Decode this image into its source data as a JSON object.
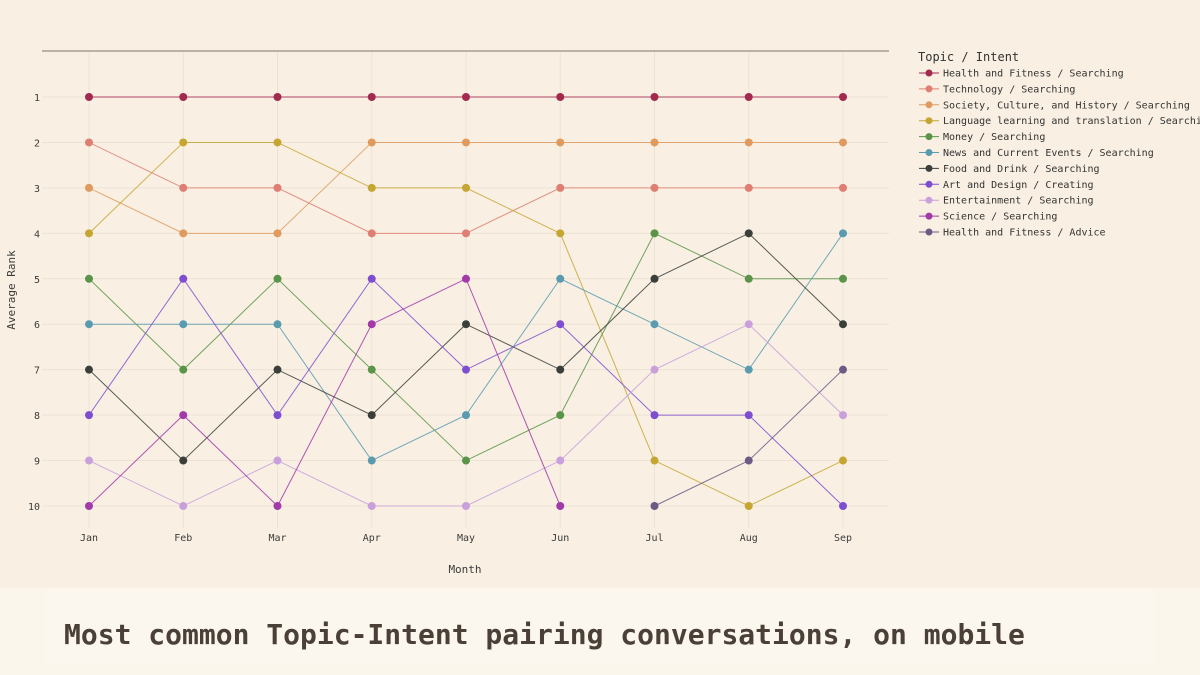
{
  "chart_data": {
    "type": "line",
    "title": "",
    "xlabel": "Month",
    "ylabel": "Average Rank",
    "x": [
      "Jan",
      "Feb",
      "Mar",
      "Apr",
      "May",
      "Jun",
      "Jul",
      "Aug",
      "Sep"
    ],
    "y_ticks": [
      1,
      2,
      3,
      4,
      5,
      6,
      7,
      8,
      9,
      10
    ],
    "y_reversed": true,
    "ylim": [
      0,
      10.3
    ],
    "grid": true,
    "legend": {
      "title": "Topic / Intent",
      "placement": "right"
    },
    "series": [
      {
        "name": "Health and Fitness / Searching",
        "color": "#a3294f",
        "values": [
          1,
          1,
          1,
          1,
          1,
          1,
          1,
          1,
          1
        ]
      },
      {
        "name": "Technology / Searching",
        "color": "#df7e72",
        "values": [
          2,
          3,
          3,
          4,
          4,
          3,
          3,
          3,
          3
        ]
      },
      {
        "name": "Society, Culture, and History / Searching",
        "color": "#e09a5e",
        "values": [
          3,
          4,
          4,
          2,
          2,
          2,
          2,
          2,
          2
        ]
      },
      {
        "name": "Language learning and translation / Searching",
        "color": "#c5a632",
        "values": [
          4,
          2,
          2,
          3,
          3,
          4,
          9,
          10,
          9
        ]
      },
      {
        "name": "Money / Searching",
        "color": "#5a9448",
        "values": [
          5,
          7,
          5,
          7,
          9,
          8,
          4,
          5,
          5
        ]
      },
      {
        "name": "News and Current Events / Searching",
        "color": "#5b9bb0",
        "values": [
          6,
          6,
          6,
          9,
          8,
          5,
          6,
          7,
          4
        ]
      },
      {
        "name": "Food and Drink / Searching",
        "color": "#3b3f39",
        "values": [
          7,
          9,
          7,
          8,
          6,
          7,
          5,
          4,
          6
        ]
      },
      {
        "name": "Art and Design / Creating",
        "color": "#7f4ed0",
        "values": [
          8,
          5,
          8,
          5,
          7,
          6,
          8,
          8,
          10
        ]
      },
      {
        "name": "Entertainment / Searching",
        "color": "#c9a0dc",
        "values": [
          9,
          10,
          9,
          10,
          10,
          9,
          7,
          6,
          8
        ]
      },
      {
        "name": "Science / Searching",
        "color": "#a33aa9",
        "values": [
          10,
          8,
          10,
          6,
          5,
          10,
          null,
          null,
          null
        ]
      },
      {
        "name": "Health and Fitness / Advice",
        "color": "#6d5b86",
        "values": [
          null,
          null,
          null,
          null,
          null,
          null,
          10,
          9,
          7
        ]
      }
    ]
  },
  "caption": "Most common Topic-Intent pairing conversations, on mobile"
}
